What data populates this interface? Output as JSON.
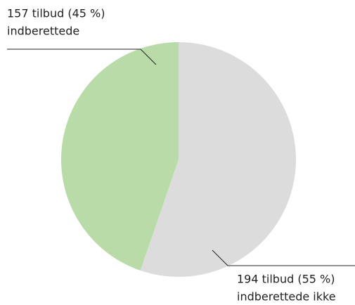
{
  "chart_data": {
    "type": "pie",
    "categories": [
      "indberettede",
      "indberettede ikke"
    ],
    "values": [
      157,
      194
    ],
    "value_labels": [
      "157 tilbud (45 %)",
      "194 tilbud (55 %)"
    ],
    "colors": [
      "#b8dba8",
      "#dcdcdc"
    ]
  }
}
